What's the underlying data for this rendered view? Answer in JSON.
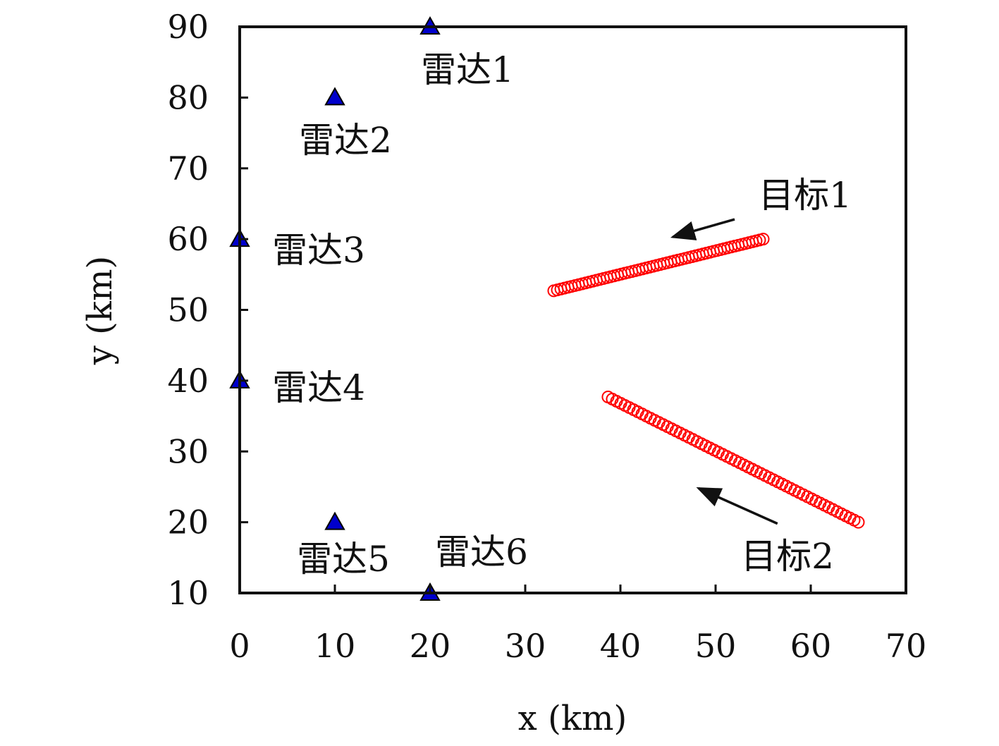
{
  "chart_data": {
    "type": "scatter",
    "title": "",
    "xlabel": "x (km)",
    "ylabel": "y (km)",
    "xlim": [
      0,
      70
    ],
    "ylim": [
      10,
      90
    ],
    "xticks": [
      "0",
      "10",
      "20",
      "30",
      "40",
      "50",
      "60",
      "70"
    ],
    "yticks": [
      "10",
      "20",
      "30",
      "40",
      "50",
      "60",
      "70",
      "80",
      "90"
    ],
    "grid": false,
    "legend": "none",
    "radars": {
      "marker": "filled-triangle",
      "color": "#0000cc",
      "points": [
        {
          "label": "雷达1",
          "x": 20,
          "y": 90
        },
        {
          "label": "雷达2",
          "x": 10,
          "y": 80
        },
        {
          "label": "雷达3",
          "x": 0,
          "y": 60
        },
        {
          "label": "雷达4",
          "x": 0,
          "y": 40
        },
        {
          "label": "雷达5",
          "x": 10,
          "y": 20
        },
        {
          "label": "雷达6",
          "x": 20,
          "y": 10
        }
      ]
    },
    "targets": {
      "marker": "open-circle",
      "color": "#ff0000",
      "tracks": [
        {
          "label": "目标1",
          "start": [
            55,
            60
          ],
          "end": [
            33,
            52.7
          ],
          "count": 60
        },
        {
          "label": "目标2",
          "start": [
            65,
            20
          ],
          "end": [
            38.7,
            37.7
          ],
          "count": 60
        }
      ]
    },
    "annotations": [
      {
        "text": "目标1",
        "arrow_from": [
          52,
          62.8
        ],
        "arrow_to": [
          45.5,
          60.3
        ]
      },
      {
        "text": "目标2",
        "arrow_from": [
          56.5,
          19.8
        ],
        "arrow_to": [
          48.2,
          24.8
        ]
      }
    ]
  }
}
